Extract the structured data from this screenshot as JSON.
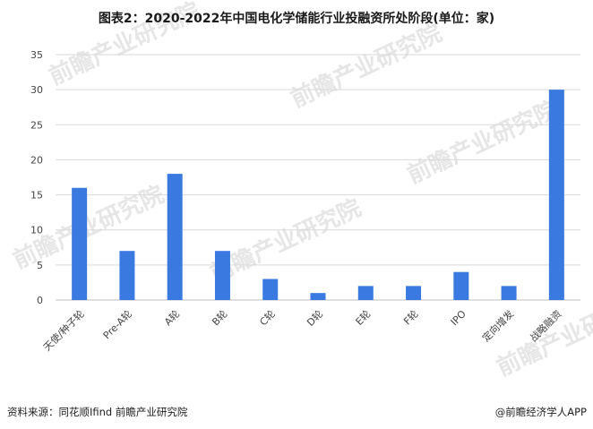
{
  "chart_data": {
    "type": "bar",
    "title": "图表2：2020-2022年中国电化学储能行业投融资所处阶段(单位：家)",
    "categories": [
      "天使/种子轮",
      "Pre-A轮",
      "A轮",
      "B轮",
      "C轮",
      "D轮",
      "E轮",
      "F轮",
      "IPO",
      "定向增发",
      "战略融资"
    ],
    "values": [
      16,
      7,
      18,
      7,
      3,
      1,
      2,
      2,
      4,
      2,
      30
    ],
    "ylim": [
      0,
      35
    ],
    "yticks": [
      0,
      5,
      10,
      15,
      20,
      25,
      30,
      35
    ],
    "xlabel": "",
    "ylabel": "",
    "grid": true,
    "bar_color": "#3a7ae0"
  },
  "footer": {
    "source": "资料来源：同花顺Ifind 前瞻产业研究院",
    "brand": "@前瞻经济学人APP"
  },
  "watermark": {
    "text": "前瞻产业研究院"
  }
}
